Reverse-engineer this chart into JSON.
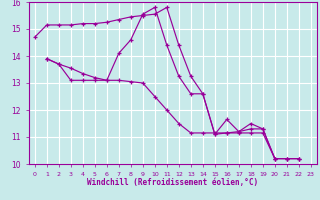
{
  "xlabel": "Windchill (Refroidissement éolien,°C)",
  "bg_color": "#c8eaea",
  "line_color": "#990099",
  "grid_color": "#ffffff",
  "xlim": [
    -0.5,
    23.5
  ],
  "ylim": [
    10,
    16
  ],
  "yticks": [
    10,
    11,
    12,
    13,
    14,
    15,
    16
  ],
  "xticks": [
    0,
    1,
    2,
    3,
    4,
    5,
    6,
    7,
    8,
    9,
    10,
    11,
    12,
    13,
    14,
    15,
    16,
    17,
    18,
    19,
    20,
    21,
    22,
    23
  ],
  "series": [
    {
      "x": [
        0,
        1,
        2,
        3,
        4,
        5,
        6,
        7,
        8,
        9,
        10,
        11,
        12,
        13,
        14,
        15,
        16,
        17,
        18,
        19,
        20,
        21,
        22
      ],
      "y": [
        14.7,
        15.15,
        15.15,
        15.15,
        15.2,
        15.2,
        15.25,
        15.35,
        15.45,
        15.5,
        15.55,
        15.8,
        14.4,
        13.25,
        12.6,
        11.1,
        11.15,
        11.2,
        11.5,
        11.3,
        10.2,
        10.2,
        10.2
      ]
    },
    {
      "x": [
        1,
        2,
        3,
        4,
        5,
        6,
        7,
        8,
        9,
        10,
        11,
        12,
        13,
        14,
        15,
        16,
        17,
        18,
        19,
        20,
        21,
        22
      ],
      "y": [
        13.9,
        13.7,
        13.55,
        13.35,
        13.2,
        13.1,
        13.1,
        13.05,
        13.0,
        12.5,
        12.0,
        11.5,
        11.15,
        11.15,
        11.15,
        11.15,
        11.15,
        11.15,
        11.15,
        10.2,
        10.2,
        10.2
      ]
    },
    {
      "x": [
        1,
        2,
        3,
        4,
        5,
        6,
        7,
        8,
        9,
        10,
        11,
        12,
        13,
        14,
        15,
        16,
        17,
        18,
        19,
        20,
        21,
        22
      ],
      "y": [
        13.9,
        13.7,
        13.1,
        13.1,
        13.1,
        13.1,
        14.1,
        14.6,
        15.55,
        15.8,
        14.4,
        13.25,
        12.6,
        12.6,
        11.1,
        11.65,
        11.2,
        11.3,
        11.3,
        10.2,
        10.2,
        10.2
      ]
    }
  ]
}
